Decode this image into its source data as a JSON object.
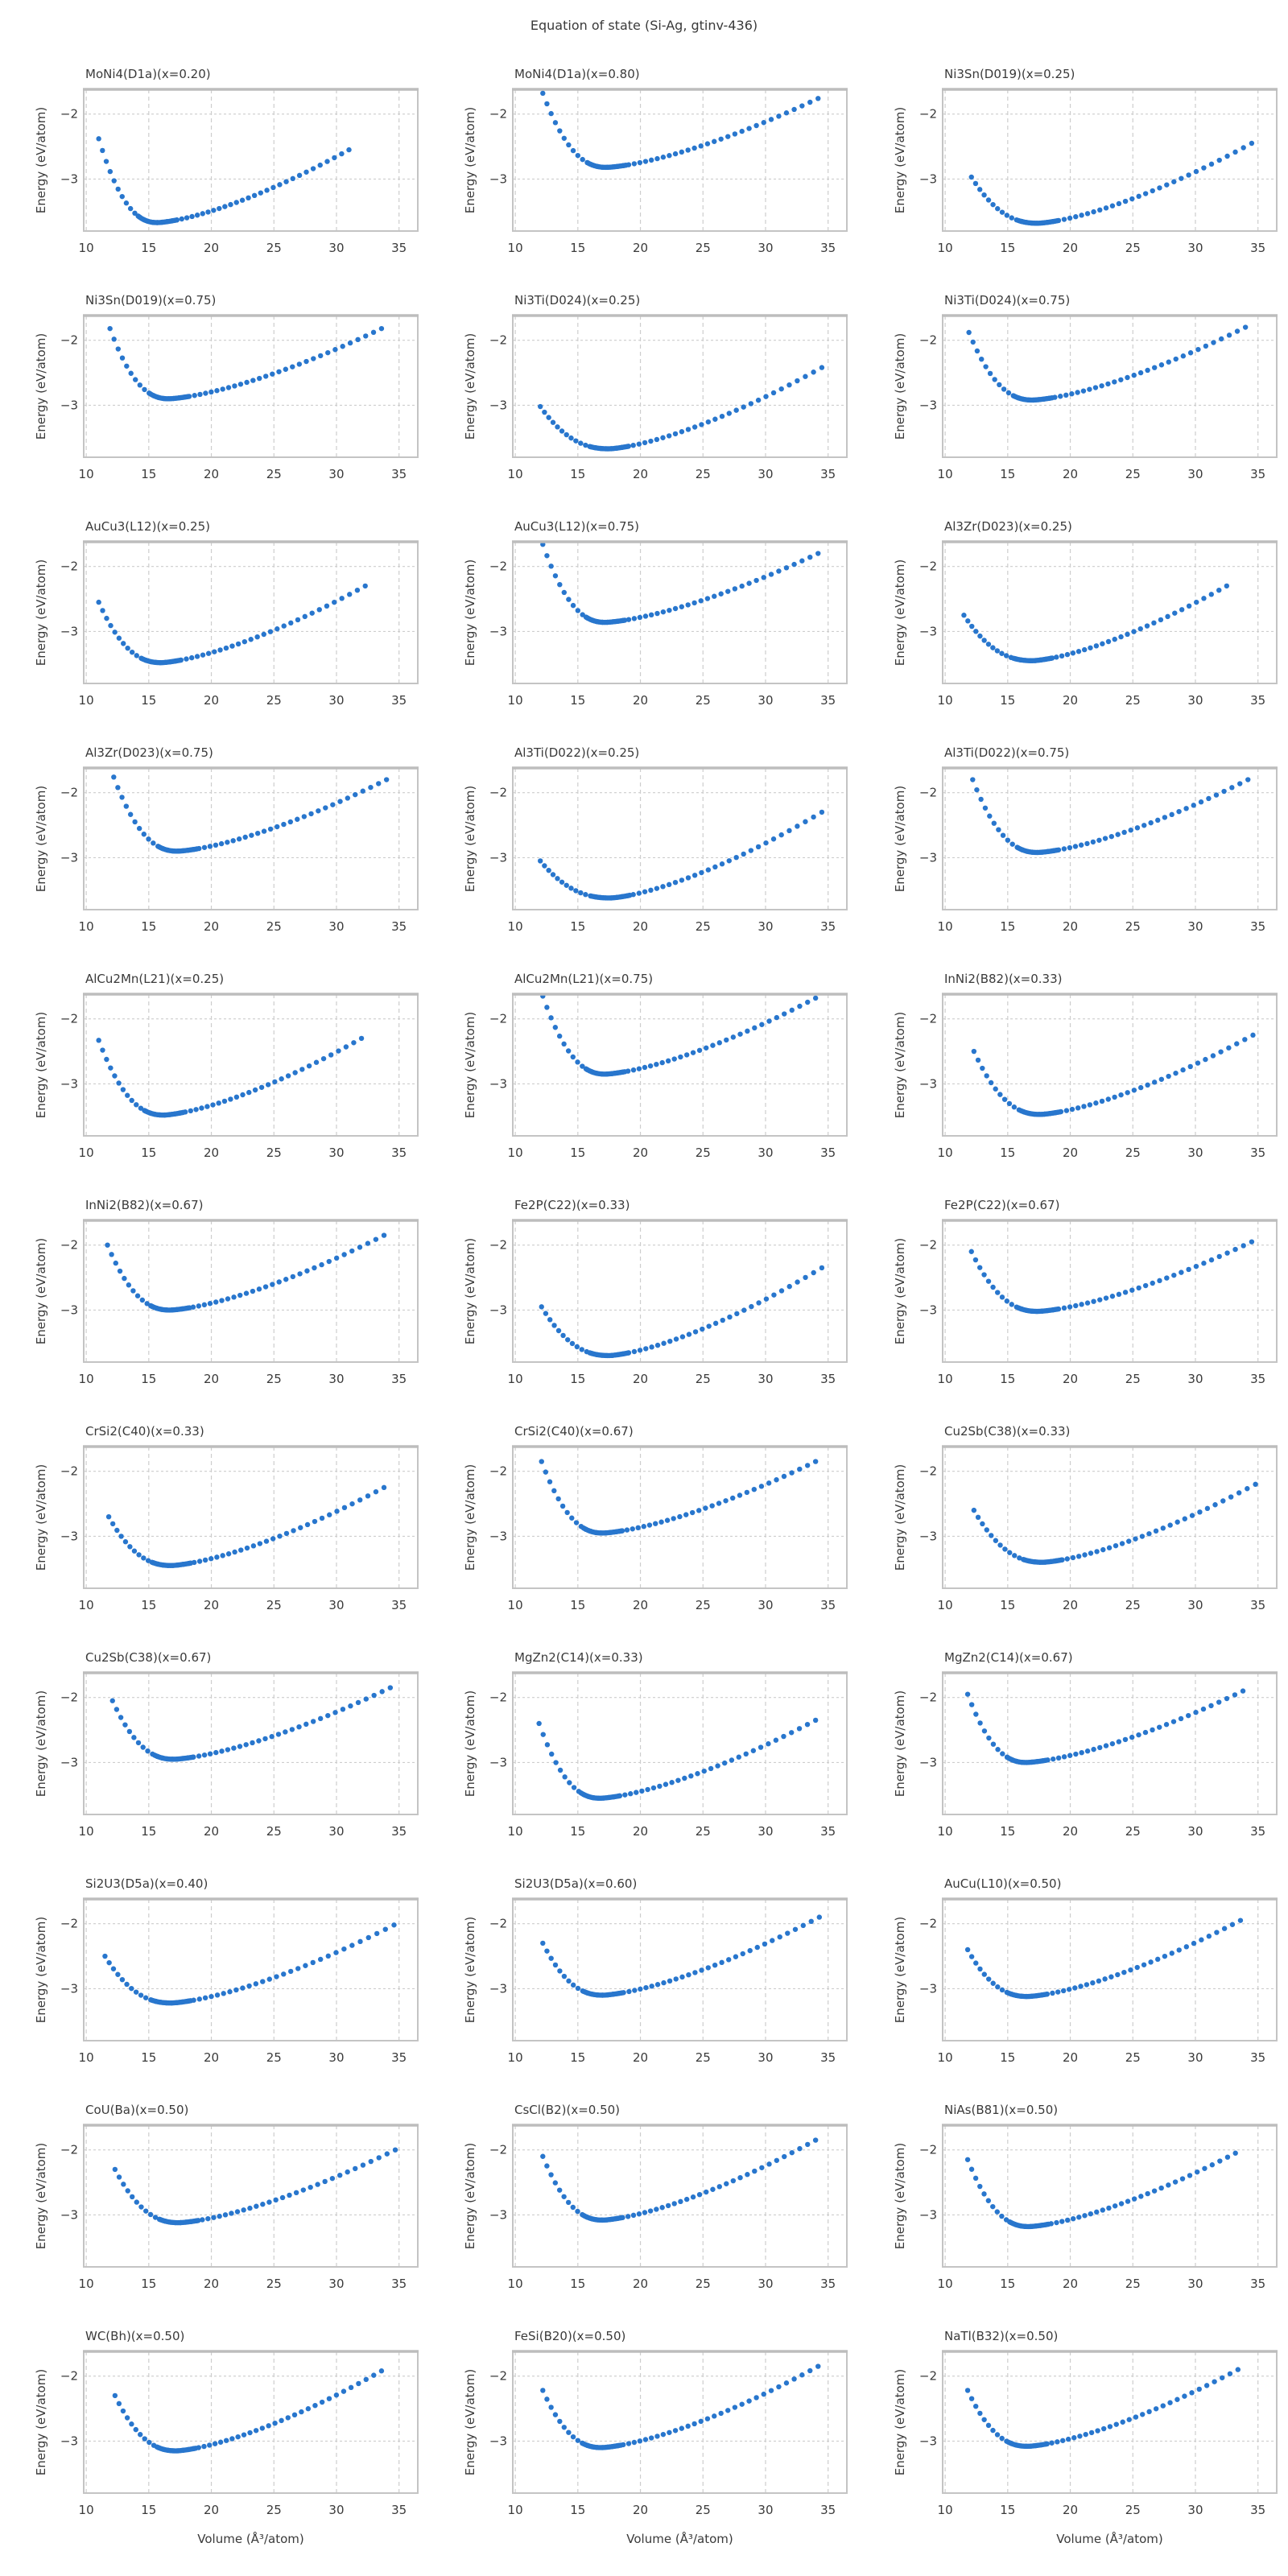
{
  "figure": {
    "suptitle": "Equation of state (Si-Ag, gtinv-436)",
    "xlabel": "Volume (Å³/atom)",
    "ylabel": "Energy (eV/atom)",
    "axes": {
      "x_ticks": [
        10,
        15,
        20,
        25,
        30,
        35
      ],
      "x_tick_labels": [
        "10",
        "15",
        "20",
        "25",
        "30",
        "35"
      ],
      "y_ticks": [
        -2,
        -3
      ],
      "y_tick_labels": [
        "−2",
        "−3"
      ],
      "xlim": [
        9.8,
        36.5
      ],
      "ylim": [
        -3.8,
        -1.62
      ],
      "grid": "dashed",
      "shared_axes": true
    },
    "colors": {
      "dot": "#2876CD",
      "grid": "#cdcdcd",
      "spine": "#c4c4c4",
      "text": "#3a3a3a"
    },
    "curve_model": {
      "description": "EOS scatter: energy vs volume; anchors are (v_start,e_start) steep wall, (v_min,e_min) minimum, (v_end,e_end) right end",
      "left_exponent": 2.3,
      "right_exponent": 1.45,
      "fine_step": 0.1,
      "fine_halfwidth": 1.55,
      "coarse_points": 46
    }
  },
  "chart_data": [
    {
      "type": "scatter",
      "title": "MoNi4(D1a)(x=0.20)",
      "v_start": 11.0,
      "e_start": -2.38,
      "v_min": 15.7,
      "e_min": -3.67,
      "v_end": 31.0,
      "e_end": -2.55
    },
    {
      "type": "scatter",
      "title": "MoNi4(D1a)(x=0.80)",
      "v_start": 12.2,
      "e_start": -1.68,
      "v_min": 17.3,
      "e_min": -2.82,
      "v_end": 34.2,
      "e_end": -1.76
    },
    {
      "type": "scatter",
      "title": "Ni3Sn(D019)(x=0.25)",
      "v_start": 12.1,
      "e_start": -2.97,
      "v_min": 17.4,
      "e_min": -3.68,
      "v_end": 34.5,
      "e_end": -2.45
    },
    {
      "type": "scatter",
      "title": "Ni3Sn(D019)(x=0.75)",
      "v_start": 11.9,
      "e_start": -1.82,
      "v_min": 16.6,
      "e_min": -2.9,
      "v_end": 33.6,
      "e_end": -1.82
    },
    {
      "type": "scatter",
      "title": "Ni3Ti(D024)(x=0.25)",
      "v_start": 12.0,
      "e_start": -3.02,
      "v_min": 17.5,
      "e_min": -3.67,
      "v_end": 34.5,
      "e_end": -2.42
    },
    {
      "type": "scatter",
      "title": "Ni3Ti(D024)(x=0.75)",
      "v_start": 11.9,
      "e_start": -1.88,
      "v_min": 17.0,
      "e_min": -2.92,
      "v_end": 34.0,
      "e_end": -1.8
    },
    {
      "type": "scatter",
      "title": "AuCu3(L12)(x=0.25)",
      "v_start": 11.0,
      "e_start": -2.55,
      "v_min": 16.0,
      "e_min": -3.48,
      "v_end": 32.3,
      "e_end": -2.3
    },
    {
      "type": "scatter",
      "title": "AuCu3(L12)(x=0.75)",
      "v_start": 12.2,
      "e_start": -1.66,
      "v_min": 17.2,
      "e_min": -2.86,
      "v_end": 34.2,
      "e_end": -1.8
    },
    {
      "type": "scatter",
      "title": "Al3Zr(D023)(x=0.25)",
      "v_start": 11.5,
      "e_start": -2.75,
      "v_min": 17.0,
      "e_min": -3.45,
      "v_end": 32.5,
      "e_end": -2.3
    },
    {
      "type": "scatter",
      "title": "Al3Zr(D023)(x=0.75)",
      "v_start": 12.2,
      "e_start": -1.76,
      "v_min": 17.3,
      "e_min": -2.9,
      "v_end": 34.0,
      "e_end": -1.8
    },
    {
      "type": "scatter",
      "title": "Al3Ti(D022)(x=0.25)",
      "v_start": 12.0,
      "e_start": -3.05,
      "v_min": 17.6,
      "e_min": -3.62,
      "v_end": 34.5,
      "e_end": -2.3
    },
    {
      "type": "scatter",
      "title": "Al3Ti(D022)(x=0.75)",
      "v_start": 12.2,
      "e_start": -1.8,
      "v_min": 17.4,
      "e_min": -2.92,
      "v_end": 34.2,
      "e_end": -1.8
    },
    {
      "type": "scatter",
      "title": "AlCu2Mn(L21)(x=0.25)",
      "v_start": 11.0,
      "e_start": -2.33,
      "v_min": 16.2,
      "e_min": -3.48,
      "v_end": 32.0,
      "e_end": -2.3
    },
    {
      "type": "scatter",
      "title": "AlCu2Mn(L21)(x=0.75)",
      "v_start": 12.2,
      "e_start": -1.65,
      "v_min": 17.2,
      "e_min": -2.85,
      "v_end": 34.0,
      "e_end": -1.68
    },
    {
      "type": "scatter",
      "title": "InNi2(B82)(x=0.33)",
      "v_start": 12.3,
      "e_start": -2.5,
      "v_min": 17.6,
      "e_min": -3.47,
      "v_end": 34.6,
      "e_end": -2.25
    },
    {
      "type": "scatter",
      "title": "InNi2(B82)(x=0.67)",
      "v_start": 11.7,
      "e_start": -2.0,
      "v_min": 16.7,
      "e_min": -3.0,
      "v_end": 33.8,
      "e_end": -1.85
    },
    {
      "type": "scatter",
      "title": "Fe2P(C22)(x=0.33)",
      "v_start": 12.1,
      "e_start": -2.95,
      "v_min": 17.5,
      "e_min": -3.7,
      "v_end": 34.5,
      "e_end": -2.35
    },
    {
      "type": "scatter",
      "title": "Fe2P(C22)(x=0.67)",
      "v_start": 12.1,
      "e_start": -2.1,
      "v_min": 17.4,
      "e_min": -3.02,
      "v_end": 34.5,
      "e_end": -1.95
    },
    {
      "type": "scatter",
      "title": "CrSi2(C40)(x=0.33)",
      "v_start": 11.8,
      "e_start": -2.7,
      "v_min": 16.8,
      "e_min": -3.45,
      "v_end": 33.8,
      "e_end": -2.25
    },
    {
      "type": "scatter",
      "title": "CrSi2(C40)(x=0.67)",
      "v_start": 12.1,
      "e_start": -1.85,
      "v_min": 17.0,
      "e_min": -2.95,
      "v_end": 34.0,
      "e_end": -1.85
    },
    {
      "type": "scatter",
      "title": "Cu2Sb(C38)(x=0.33)",
      "v_start": 12.3,
      "e_start": -2.6,
      "v_min": 17.8,
      "e_min": -3.4,
      "v_end": 34.8,
      "e_end": -2.2
    },
    {
      "type": "scatter",
      "title": "Cu2Sb(C38)(x=0.67)",
      "v_start": 12.1,
      "e_start": -2.05,
      "v_min": 17.0,
      "e_min": -2.95,
      "v_end": 34.3,
      "e_end": -1.85
    },
    {
      "type": "scatter",
      "title": "MgZn2(C14)(x=0.33)",
      "v_start": 11.9,
      "e_start": -2.4,
      "v_min": 16.8,
      "e_min": -3.55,
      "v_end": 34.0,
      "e_end": -2.35
    },
    {
      "type": "scatter",
      "title": "MgZn2(C14)(x=0.67)",
      "v_start": 11.8,
      "e_start": -1.95,
      "v_min": 16.5,
      "e_min": -3.0,
      "v_end": 33.8,
      "e_end": -1.9
    },
    {
      "type": "scatter",
      "title": "Si2U3(D5a)(x=0.40)",
      "v_start": 11.5,
      "e_start": -2.5,
      "v_min": 16.8,
      "e_min": -3.22,
      "v_end": 34.6,
      "e_end": -2.02
    },
    {
      "type": "scatter",
      "title": "Si2U3(D5a)(x=0.60)",
      "v_start": 12.2,
      "e_start": -2.3,
      "v_min": 17.0,
      "e_min": -3.1,
      "v_end": 34.3,
      "e_end": -1.9
    },
    {
      "type": "scatter",
      "title": "AuCu(L10)(x=0.50)",
      "v_start": 11.8,
      "e_start": -2.4,
      "v_min": 16.6,
      "e_min": -3.12,
      "v_end": 33.6,
      "e_end": -1.95
    },
    {
      "type": "scatter",
      "title": "CoU(Ba)(x=0.50)",
      "v_start": 12.3,
      "e_start": -2.3,
      "v_min": 17.4,
      "e_min": -3.12,
      "v_end": 34.7,
      "e_end": -2.0
    },
    {
      "type": "scatter",
      "title": "CsCl(B2)(x=0.50)",
      "v_start": 12.2,
      "e_start": -2.1,
      "v_min": 17.0,
      "e_min": -3.08,
      "v_end": 34.0,
      "e_end": -1.85
    },
    {
      "type": "scatter",
      "title": "NiAs(B81)(x=0.50)",
      "v_start": 11.8,
      "e_start": -2.15,
      "v_min": 16.7,
      "e_min": -3.18,
      "v_end": 33.2,
      "e_end": -2.05
    },
    {
      "type": "scatter",
      "title": "WC(Bh)(x=0.50)",
      "v_start": 12.3,
      "e_start": -2.3,
      "v_min": 17.2,
      "e_min": -3.15,
      "v_end": 33.6,
      "e_end": -1.92
    },
    {
      "type": "scatter",
      "title": "FeSi(B20)(x=0.50)",
      "v_start": 12.2,
      "e_start": -2.22,
      "v_min": 16.9,
      "e_min": -3.1,
      "v_end": 34.2,
      "e_end": -1.85
    },
    {
      "type": "scatter",
      "title": "NaTl(B32)(x=0.50)",
      "v_start": 11.8,
      "e_start": -2.22,
      "v_min": 16.6,
      "e_min": -3.08,
      "v_end": 33.4,
      "e_end": -1.9
    }
  ]
}
